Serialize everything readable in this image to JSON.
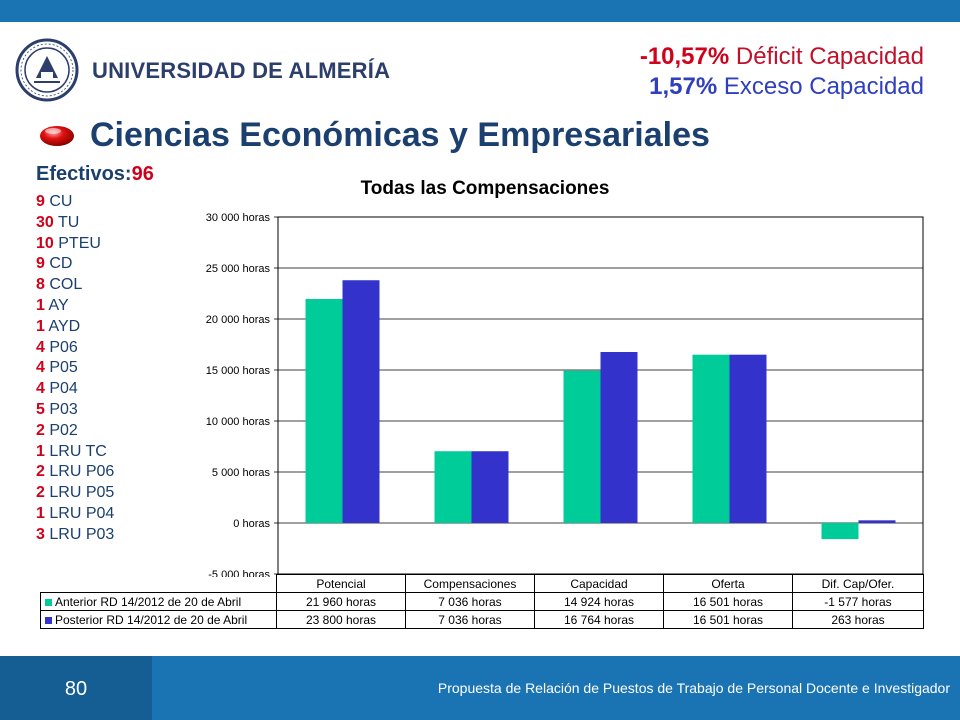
{
  "header": {
    "university": "UNIVERSIDAD DE ALMERÍA"
  },
  "stats": {
    "deficit_pct": "-10,57%",
    "deficit_label": "Déficit Capacidad",
    "excess_pct": "1,57%",
    "excess_label": "Exceso Capacidad"
  },
  "slide": {
    "title": "Ciencias Económicas y Empresariales"
  },
  "staff": {
    "label": "Efectivos:",
    "total": "96",
    "items": [
      {
        "n": "9",
        "cat": "CU"
      },
      {
        "n": "30",
        "cat": "TU"
      },
      {
        "n": "10",
        "cat": "PTEU"
      },
      {
        "n": "9",
        "cat": "CD"
      },
      {
        "n": "8",
        "cat": "COL"
      },
      {
        "n": "1",
        "cat": "AY"
      },
      {
        "n": "1",
        "cat": "AYD"
      },
      {
        "n": "4",
        "cat": "P06"
      },
      {
        "n": "4",
        "cat": "P05"
      },
      {
        "n": "4",
        "cat": "P04"
      },
      {
        "n": "5",
        "cat": "P03"
      },
      {
        "n": "2",
        "cat": "P02"
      },
      {
        "n": "1",
        "cat": "LRU TC"
      },
      {
        "n": "2",
        "cat": "LRU P06"
      },
      {
        "n": "2",
        "cat": "LRU P05"
      },
      {
        "n": "1",
        "cat": "LRU P04"
      },
      {
        "n": "3",
        "cat": "LRU P03"
      }
    ]
  },
  "chart_data": {
    "type": "bar",
    "title": "Todas las Compensaciones",
    "categories": [
      "Potencial",
      "Compensaciones",
      "Capacidad",
      "Oferta",
      "Dif. Cap/Ofer."
    ],
    "series": [
      {
        "name": "Anterior RD 14/2012 de 20 de Abril",
        "color": "#00cc99",
        "values": [
          21960,
          7036,
          14924,
          16501,
          -1577
        ],
        "labels": [
          "21 960 horas",
          "7 036 horas",
          "14 924 horas",
          "16 501 horas",
          "-1 577 horas"
        ]
      },
      {
        "name": "Posterior RD 14/2012 de 20 de Abril",
        "color": "#3333cc",
        "values": [
          23800,
          7036,
          16764,
          16501,
          263
        ],
        "labels": [
          "23 800 horas",
          "7 036 horas",
          "16 764 horas",
          "16 501 horas",
          "263 horas"
        ]
      }
    ],
    "ylim": [
      -5000,
      30000
    ],
    "yticks": [
      30000,
      25000,
      20000,
      15000,
      10000,
      5000,
      0,
      -5000
    ],
    "ytick_labels": [
      "30 000 horas",
      "25 000 horas",
      "20 000 horas",
      "15 000 horas",
      "10 000 horas",
      "5 000 horas",
      "0 horas",
      "-5 000 horas"
    ],
    "grid": true,
    "legend": "data-table"
  },
  "footer": {
    "page": "80",
    "text": "Propuesta de Relación de Puestos de Trabajo de Personal Docente e Investigador"
  }
}
